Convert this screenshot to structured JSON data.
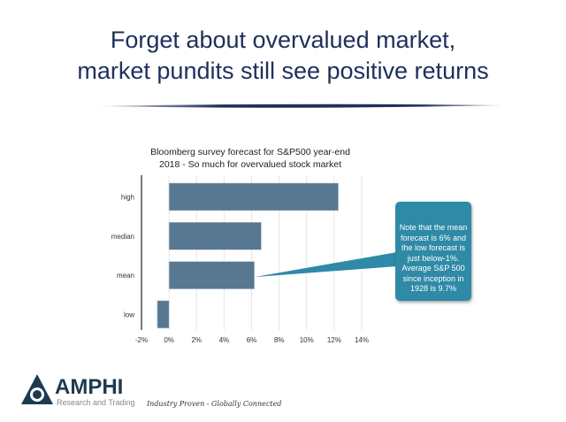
{
  "slide": {
    "title_line1": "Forget about overvalued market,",
    "title_line2": "market pundits still see positive returns",
    "callout_text": "Note that the mean forecast is 6% and the low forecast is just below-1%. Average S&P 500 since inception in 1928  is 9.7%",
    "brand": "AMPHI",
    "brand_sub": "Research and Trading",
    "tagline": "Industry Proven - Globally Connected"
  },
  "colors": {
    "title": "#1f2f5c",
    "bar": "#587791",
    "callout": "#2e8aa6"
  },
  "chart_data": {
    "type": "bar",
    "orientation": "horizontal",
    "title_line1": "Bloomberg survey forecast for S&P500 year-end",
    "title_line2": "2018 - So much for overvalued stock market",
    "categories": [
      "high",
      "median",
      "mean",
      "low"
    ],
    "values": [
      12.3,
      6.7,
      6.2,
      -0.85
    ],
    "xlim": [
      -2,
      14
    ],
    "xticks": [
      -2,
      0,
      2,
      4,
      6,
      8,
      10,
      12,
      14
    ],
    "xtick_labels": [
      "-2%",
      "0%",
      "2%",
      "4%",
      "6%",
      "8%",
      "10%",
      "12%",
      "14%"
    ],
    "grid": true,
    "xlabel": "",
    "ylabel": ""
  }
}
